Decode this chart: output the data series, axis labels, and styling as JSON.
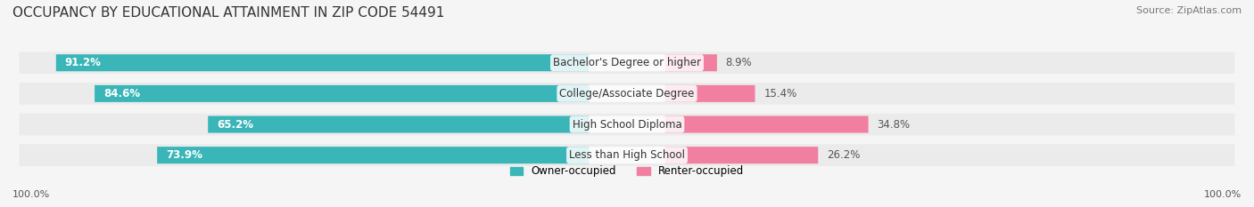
{
  "title": "OCCUPANCY BY EDUCATIONAL ATTAINMENT IN ZIP CODE 54491",
  "source": "Source: ZipAtlas.com",
  "categories": [
    "Less than High School",
    "High School Diploma",
    "College/Associate Degree",
    "Bachelor's Degree or higher"
  ],
  "owner_pct": [
    73.9,
    65.2,
    84.6,
    91.2
  ],
  "renter_pct": [
    26.2,
    34.8,
    15.4,
    8.9
  ],
  "owner_color": "#3ab5b8",
  "renter_color": "#f07fa0",
  "background_color": "#f5f5f5",
  "bar_background": "#e8e8e8",
  "title_fontsize": 11,
  "source_fontsize": 8,
  "label_fontsize": 8.5,
  "axis_label_fontsize": 8,
  "legend_fontsize": 8.5,
  "left_label": "100.0%",
  "right_label": "100.0%"
}
